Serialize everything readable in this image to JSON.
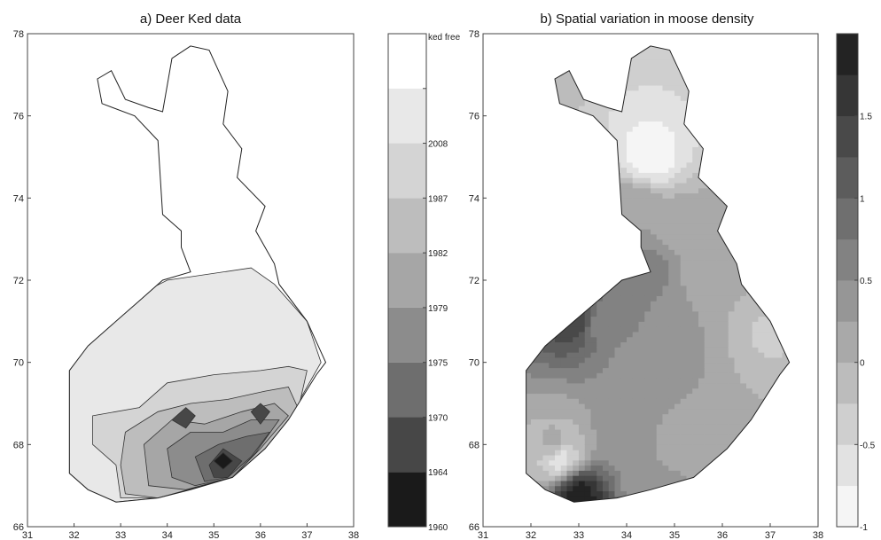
{
  "chart_data": [
    {
      "type": "heatmap",
      "title": "a) Deer Ked data",
      "xlabel": "",
      "ylabel": "",
      "xlim": [
        31,
        38
      ],
      "ylim": [
        66,
        78
      ],
      "xticks": [
        31,
        32,
        33,
        34,
        35,
        36,
        37,
        38
      ],
      "yticks": [
        66,
        68,
        70,
        72,
        74,
        76,
        78
      ],
      "grid": false,
      "colorbar": {
        "position": "right",
        "levels": [
          1960,
          1964,
          1970,
          1975,
          1979,
          1982,
          1987,
          2008,
          "ked free"
        ],
        "colors": [
          "#1a1a1a",
          "#474747",
          "#6e6e6e",
          "#8c8c8c",
          "#a6a6a6",
          "#bdbdbd",
          "#d4d4d4",
          "#e8e8e8",
          "#ffffff"
        ]
      },
      "outline": [
        [
          32.5,
          76.9
        ],
        [
          32.8,
          77.1
        ],
        [
          33.1,
          76.4
        ],
        [
          33.6,
          76.2
        ],
        [
          33.9,
          76.1
        ],
        [
          34.1,
          77.4
        ],
        [
          34.5,
          77.7
        ],
        [
          34.9,
          77.6
        ],
        [
          35.3,
          76.6
        ],
        [
          35.2,
          75.8
        ],
        [
          35.6,
          75.2
        ],
        [
          35.5,
          74.5
        ],
        [
          36.1,
          73.8
        ],
        [
          35.9,
          73.2
        ],
        [
          36.3,
          72.4
        ],
        [
          36.4,
          71.9
        ],
        [
          37.0,
          71.0
        ],
        [
          37.4,
          70.0
        ],
        [
          37.2,
          69.7
        ],
        [
          36.6,
          68.6
        ],
        [
          36.1,
          67.9
        ],
        [
          35.4,
          67.2
        ],
        [
          35.1,
          67.1
        ],
        [
          34.5,
          66.9
        ],
        [
          33.8,
          66.7
        ],
        [
          32.9,
          66.6
        ],
        [
          32.3,
          66.9
        ],
        [
          31.9,
          67.3
        ],
        [
          31.9,
          68.7
        ],
        [
          31.9,
          69.8
        ],
        [
          32.3,
          70.4
        ],
        [
          32.9,
          71.0
        ],
        [
          33.4,
          71.5
        ],
        [
          33.9,
          72.0
        ],
        [
          34.5,
          72.2
        ],
        [
          34.3,
          72.8
        ],
        [
          34.3,
          73.2
        ],
        [
          33.9,
          73.6
        ],
        [
          33.8,
          75.4
        ],
        [
          33.3,
          76.0
        ],
        [
          32.6,
          76.3
        ],
        [
          32.5,
          76.9
        ]
      ],
      "regions": [
        {
          "level": 2008,
          "points": [
            [
              31.9,
              69.8
            ],
            [
              32.6,
              71.2
            ],
            [
              34.0,
              72.0
            ],
            [
              34.6,
              72.1
            ],
            [
              35.8,
              72.3
            ],
            [
              36.3,
              71.9
            ],
            [
              37.0,
              71.0
            ],
            [
              37.3,
              70.0
            ],
            [
              37.0,
              69.4
            ],
            [
              36.6,
              68.6
            ],
            [
              36.1,
              67.9
            ],
            [
              35.4,
              67.2
            ],
            [
              33.8,
              66.7
            ],
            [
              32.9,
              66.6
            ],
            [
              32.3,
              66.9
            ],
            [
              31.9,
              67.3
            ]
          ]
        },
        {
          "level": 1987,
          "points": [
            [
              32.4,
              68.7
            ],
            [
              33.4,
              68.9
            ],
            [
              34.0,
              69.5
            ],
            [
              35.0,
              69.7
            ],
            [
              36.0,
              69.8
            ],
            [
              36.6,
              69.9
            ],
            [
              37.0,
              69.8
            ],
            [
              36.8,
              68.8
            ],
            [
              36.1,
              67.9
            ],
            [
              35.4,
              67.2
            ],
            [
              33.8,
              66.7
            ],
            [
              33.0,
              66.7
            ],
            [
              32.9,
              67.5
            ],
            [
              32.4,
              68.0
            ]
          ]
        },
        {
          "level": 1982,
          "points": [
            [
              33.1,
              68.3
            ],
            [
              33.8,
              68.8
            ],
            [
              34.5,
              69.0
            ],
            [
              35.3,
              69.1
            ],
            [
              36.1,
              69.3
            ],
            [
              36.6,
              69.4
            ],
            [
              36.8,
              68.9
            ],
            [
              36.2,
              68.0
            ],
            [
              35.4,
              67.2
            ],
            [
              33.8,
              66.7
            ],
            [
              33.1,
              66.8
            ],
            [
              33.0,
              67.5
            ]
          ]
        },
        {
          "level": 1979,
          "points": [
            [
              33.5,
              68.0
            ],
            [
              34.1,
              68.6
            ],
            [
              34.8,
              68.5
            ],
            [
              35.6,
              68.8
            ],
            [
              36.3,
              69.0
            ],
            [
              36.6,
              68.7
            ],
            [
              36.0,
              67.9
            ],
            [
              35.4,
              67.2
            ],
            [
              34.4,
              66.9
            ],
            [
              33.6,
              67.0
            ]
          ]
        },
        {
          "level": 1975,
          "points": [
            [
              34.0,
              67.9
            ],
            [
              34.5,
              68.3
            ],
            [
              35.2,
              68.3
            ],
            [
              35.8,
              68.6
            ],
            [
              36.4,
              68.6
            ],
            [
              35.9,
              67.8
            ],
            [
              35.4,
              67.2
            ],
            [
              34.6,
              67.0
            ],
            [
              34.1,
              67.2
            ]
          ]
        },
        {
          "level": 1970,
          "points": [
            [
              34.6,
              67.7
            ],
            [
              35.1,
              68.0
            ],
            [
              35.7,
              68.2
            ],
            [
              36.2,
              68.3
            ],
            [
              35.8,
              67.7
            ],
            [
              35.3,
              67.2
            ],
            [
              34.8,
              67.1
            ]
          ]
        },
        {
          "level": 1964,
          "points": [
            [
              34.9,
              67.5
            ],
            [
              35.2,
              67.9
            ],
            [
              35.6,
              67.6
            ],
            [
              35.3,
              67.2
            ],
            [
              35.0,
              67.2
            ]
          ]
        },
        {
          "level": 1964,
          "points": [
            [
              34.1,
              68.6
            ],
            [
              34.4,
              68.9
            ],
            [
              34.6,
              68.7
            ],
            [
              34.4,
              68.4
            ]
          ]
        },
        {
          "level": 1964,
          "points": [
            [
              35.8,
              68.8
            ],
            [
              36.0,
              69.0
            ],
            [
              36.2,
              68.8
            ],
            [
              36.0,
              68.5
            ]
          ]
        },
        {
          "level": 1960,
          "points": [
            [
              35.0,
              67.6
            ],
            [
              35.2,
              67.8
            ],
            [
              35.4,
              67.6
            ],
            [
              35.2,
              67.4
            ]
          ]
        }
      ]
    },
    {
      "type": "heatmap",
      "title": "b) Spatial variation in moose density",
      "xlabel": "",
      "ylabel": "",
      "xlim": [
        31,
        38
      ],
      "ylim": [
        66,
        78
      ],
      "xticks": [
        31,
        32,
        33,
        34,
        35,
        36,
        37,
        38
      ],
      "yticks": [
        66,
        68,
        70,
        72,
        74,
        76,
        78
      ],
      "grid": false,
      "colorbar": {
        "position": "right",
        "range": [
          -1,
          2
        ],
        "ticks": [
          -1,
          -0.5,
          0,
          0.5,
          1,
          1.5
        ],
        "band_width": 0.25
      },
      "outline": [
        [
          32.5,
          76.9
        ],
        [
          32.8,
          77.1
        ],
        [
          33.1,
          76.4
        ],
        [
          33.6,
          76.2
        ],
        [
          33.9,
          76.1
        ],
        [
          34.1,
          77.4
        ],
        [
          34.5,
          77.7
        ],
        [
          34.9,
          77.6
        ],
        [
          35.3,
          76.6
        ],
        [
          35.2,
          75.8
        ],
        [
          35.6,
          75.2
        ],
        [
          35.5,
          74.5
        ],
        [
          36.1,
          73.8
        ],
        [
          35.9,
          73.2
        ],
        [
          36.3,
          72.4
        ],
        [
          36.4,
          71.9
        ],
        [
          37.0,
          71.0
        ],
        [
          37.4,
          70.0
        ],
        [
          37.2,
          69.7
        ],
        [
          36.6,
          68.6
        ],
        [
          36.1,
          67.9
        ],
        [
          35.4,
          67.2
        ],
        [
          35.1,
          67.1
        ],
        [
          34.5,
          66.9
        ],
        [
          33.8,
          66.7
        ],
        [
          32.9,
          66.6
        ],
        [
          32.3,
          66.9
        ],
        [
          31.9,
          67.3
        ],
        [
          31.9,
          68.7
        ],
        [
          31.9,
          69.8
        ],
        [
          32.3,
          70.4
        ],
        [
          32.9,
          71.0
        ],
        [
          33.4,
          71.5
        ],
        [
          33.9,
          72.0
        ],
        [
          34.5,
          72.2
        ],
        [
          34.3,
          72.8
        ],
        [
          34.3,
          73.2
        ],
        [
          33.9,
          73.6
        ],
        [
          33.8,
          75.4
        ],
        [
          33.3,
          76.0
        ],
        [
          32.6,
          76.3
        ],
        [
          32.5,
          76.9
        ]
      ],
      "density_points": [
        {
          "x": 34.5,
          "y": 75.0,
          "value": -0.9
        },
        {
          "x": 34.2,
          "y": 73.8,
          "value": 0.2
        },
        {
          "x": 35.0,
          "y": 73.2,
          "value": 0.2
        },
        {
          "x": 34.5,
          "y": 72.3,
          "value": 0.6
        },
        {
          "x": 35.6,
          "y": 72.4,
          "value": 0.1
        },
        {
          "x": 33.5,
          "y": 71.0,
          "value": 0.6
        },
        {
          "x": 32.9,
          "y": 71.1,
          "value": 1.5
        },
        {
          "x": 34.2,
          "y": 70.0,
          "value": 0.4
        },
        {
          "x": 35.2,
          "y": 70.2,
          "value": 0.4
        },
        {
          "x": 36.2,
          "y": 70.2,
          "value": 0.0
        },
        {
          "x": 36.9,
          "y": 70.6,
          "value": -0.3
        },
        {
          "x": 32.5,
          "y": 68.0,
          "value": 0.1
        },
        {
          "x": 32.6,
          "y": 67.7,
          "value": -0.7
        },
        {
          "x": 33.9,
          "y": 68.4,
          "value": 0.4
        },
        {
          "x": 35.0,
          "y": 68.0,
          "value": 0.2
        },
        {
          "x": 36.0,
          "y": 68.5,
          "value": 0.0
        },
        {
          "x": 33.0,
          "y": 66.8,
          "value": 1.9
        },
        {
          "x": 34.5,
          "y": 67.1,
          "value": 0.3
        }
      ]
    }
  ]
}
